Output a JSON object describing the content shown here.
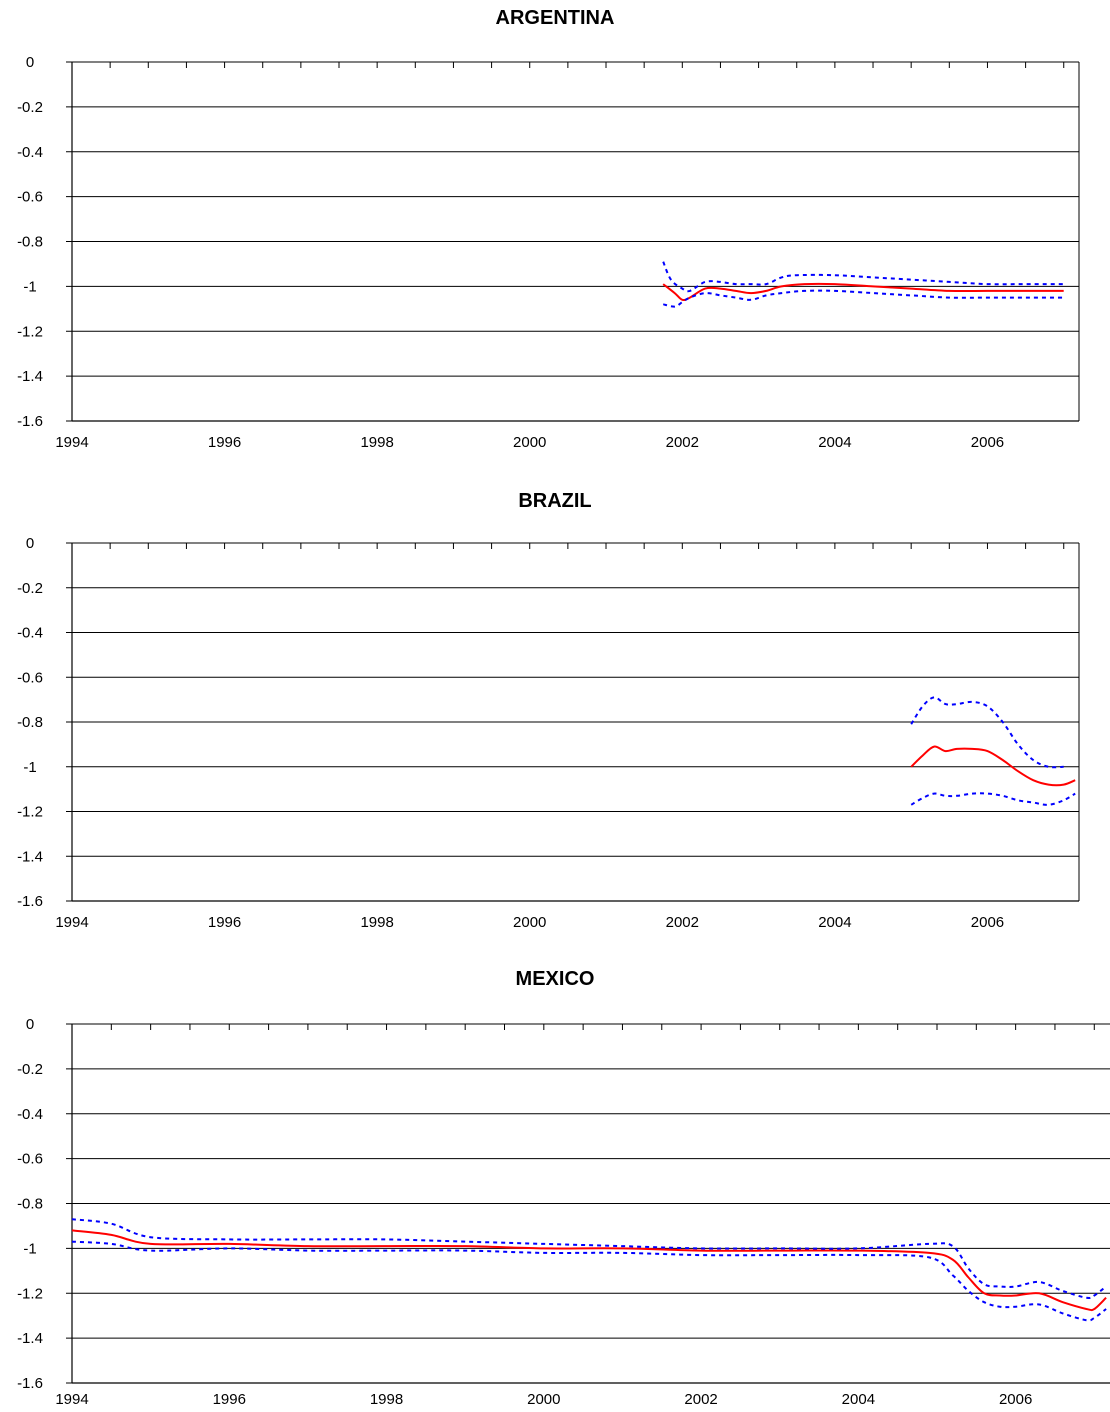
{
  "chart_data": [
    {
      "type": "line",
      "title": "ARGENTINA",
      "xlim": [
        1994,
        2007.2
      ],
      "ylim": [
        -1.6,
        0
      ],
      "x_ticks": [
        "1994",
        "1996",
        "1998",
        "2000",
        "2002",
        "2004",
        "2006"
      ],
      "y_ticks": [
        "0",
        "-0.2",
        "-0.4",
        "-0.6",
        "-0.8",
        "-1",
        "-1.2",
        "-1.4",
        "-1.6"
      ],
      "grid": true,
      "series": [
        {
          "style": "solid",
          "color": "#ff0000",
          "x": [
            2001.75,
            2001.9,
            2002.0,
            2002.1,
            2002.3,
            2002.5,
            2002.7,
            2002.9,
            2003.1,
            2003.3,
            2003.6,
            2004.0,
            2004.5,
            2005.0,
            2005.5,
            2006.0,
            2006.5,
            2007.0
          ],
          "y": [
            -0.99,
            -1.03,
            -1.06,
            -1.05,
            -1.01,
            -1.01,
            -1.02,
            -1.03,
            -1.02,
            -1.0,
            -0.99,
            -0.99,
            -1.0,
            -1.01,
            -1.02,
            -1.02,
            -1.02,
            -1.02
          ]
        },
        {
          "style": "dotted",
          "color": "#0000ff",
          "x": [
            2001.75,
            2001.85,
            2002.0,
            2002.1,
            2002.3,
            2002.5,
            2002.7,
            2002.9,
            2003.1,
            2003.3,
            2003.5,
            2004.0,
            2004.5,
            2005.0,
            2005.5,
            2006.0,
            2006.5,
            2007.0
          ],
          "y": [
            -0.89,
            -0.97,
            -1.01,
            -1.02,
            -0.98,
            -0.98,
            -0.99,
            -0.99,
            -0.99,
            -0.96,
            -0.95,
            -0.95,
            -0.96,
            -0.97,
            -0.98,
            -0.99,
            -0.99,
            -0.99
          ]
        },
        {
          "style": "dotted",
          "color": "#0000ff",
          "x": [
            2001.75,
            2001.9,
            2002.0,
            2002.1,
            2002.3,
            2002.5,
            2002.7,
            2002.9,
            2003.1,
            2003.3,
            2003.6,
            2004.0,
            2004.5,
            2005.0,
            2005.5,
            2006.0,
            2006.5,
            2007.0
          ],
          "y": [
            -1.08,
            -1.09,
            -1.07,
            -1.05,
            -1.03,
            -1.04,
            -1.05,
            -1.06,
            -1.04,
            -1.03,
            -1.02,
            -1.02,
            -1.03,
            -1.04,
            -1.05,
            -1.05,
            -1.05,
            -1.05
          ]
        }
      ]
    },
    {
      "type": "line",
      "title": "BRAZIL",
      "xlim": [
        1994,
        2007.2
      ],
      "ylim": [
        -1.6,
        0
      ],
      "x_ticks": [
        "1994",
        "1996",
        "1998",
        "2000",
        "2002",
        "2004",
        "2006"
      ],
      "y_ticks": [
        "0",
        "-0.2",
        "-0.4",
        "-0.6",
        "-0.8",
        "-1",
        "-1.2",
        "-1.4",
        "-1.6"
      ],
      "grid": true,
      "series": [
        {
          "style": "solid",
          "color": "#ff0000",
          "x": [
            2005.0,
            2005.15,
            2005.3,
            2005.45,
            2005.6,
            2005.8,
            2006.0,
            2006.2,
            2006.4,
            2006.6,
            2006.8,
            2007.0,
            2007.15
          ],
          "y": [
            -1.0,
            -0.95,
            -0.91,
            -0.93,
            -0.92,
            -0.92,
            -0.93,
            -0.97,
            -1.02,
            -1.06,
            -1.08,
            -1.08,
            -1.06
          ]
        },
        {
          "style": "dotted",
          "color": "#0000ff",
          "x": [
            2005.0,
            2005.15,
            2005.3,
            2005.45,
            2005.6,
            2005.8,
            2006.0,
            2006.2,
            2006.4,
            2006.6,
            2006.8,
            2007.0
          ],
          "y": [
            -0.81,
            -0.73,
            -0.69,
            -0.72,
            -0.72,
            -0.71,
            -0.73,
            -0.8,
            -0.9,
            -0.97,
            -1.0,
            -1.0
          ]
        },
        {
          "style": "dotted",
          "color": "#0000ff",
          "x": [
            2005.0,
            2005.15,
            2005.3,
            2005.45,
            2005.6,
            2005.8,
            2006.0,
            2006.2,
            2006.4,
            2006.6,
            2006.8,
            2007.0,
            2007.15
          ],
          "y": [
            -1.17,
            -1.14,
            -1.12,
            -1.13,
            -1.13,
            -1.12,
            -1.12,
            -1.13,
            -1.15,
            -1.16,
            -1.17,
            -1.15,
            -1.12
          ]
        }
      ]
    },
    {
      "type": "line",
      "title": "MEXICO",
      "xlim": [
        1994,
        2007.2
      ],
      "ylim": [
        -1.6,
        0
      ],
      "x_ticks": [
        "1994",
        "1996",
        "1998",
        "2000",
        "2002",
        "2004",
        "2006"
      ],
      "y_ticks": [
        "0",
        "-0.2",
        "-0.4",
        "-0.6",
        "-0.8",
        "-1",
        "-1.2",
        "-1.4",
        "-1.6"
      ],
      "grid": true,
      "series": [
        {
          "style": "solid",
          "color": "#ff0000",
          "x": [
            1994.0,
            1994.5,
            1995.0,
            1996.0,
            1997.0,
            1998.0,
            1999.0,
            2000.0,
            2001.0,
            2002.0,
            2003.0,
            2004.0,
            2004.9,
            2005.2,
            2005.4,
            2005.6,
            2005.8,
            2006.0,
            2006.3,
            2006.6,
            2006.9,
            2007.0,
            2007.15
          ],
          "y": [
            -0.92,
            -0.94,
            -0.98,
            -0.98,
            -0.99,
            -0.99,
            -0.99,
            -1.0,
            -1.0,
            -1.01,
            -1.01,
            -1.01,
            -1.02,
            -1.05,
            -1.13,
            -1.2,
            -1.21,
            -1.21,
            -1.2,
            -1.24,
            -1.27,
            -1.27,
            -1.22
          ]
        },
        {
          "style": "dotted",
          "color": "#0000ff",
          "x": [
            1994.0,
            1994.5,
            1995.0,
            1996.0,
            1997.0,
            1998.0,
            1999.0,
            2000.0,
            2001.0,
            2002.0,
            2003.0,
            2004.0,
            2004.9,
            2005.2,
            2005.4,
            2005.6,
            2005.8,
            2006.0,
            2006.3,
            2006.6,
            2006.9,
            2007.0,
            2007.15
          ],
          "y": [
            -0.87,
            -0.89,
            -0.95,
            -0.96,
            -0.96,
            -0.96,
            -0.97,
            -0.98,
            -0.99,
            -1.0,
            -1.0,
            -1.0,
            -0.98,
            -0.99,
            -1.09,
            -1.16,
            -1.17,
            -1.17,
            -1.15,
            -1.19,
            -1.22,
            -1.21,
            -1.17
          ]
        },
        {
          "style": "dotted",
          "color": "#0000ff",
          "x": [
            1994.0,
            1994.5,
            1995.0,
            1996.0,
            1997.0,
            1998.0,
            1999.0,
            2000.0,
            2001.0,
            2002.0,
            2003.0,
            2004.0,
            2004.9,
            2005.2,
            2005.4,
            2005.6,
            2005.8,
            2006.0,
            2006.3,
            2006.6,
            2006.9,
            2007.0,
            2007.15
          ],
          "y": [
            -0.97,
            -0.98,
            -1.01,
            -1.0,
            -1.01,
            -1.01,
            -1.01,
            -1.02,
            -1.02,
            -1.03,
            -1.03,
            -1.03,
            -1.04,
            -1.12,
            -1.19,
            -1.24,
            -1.26,
            -1.26,
            -1.25,
            -1.29,
            -1.32,
            -1.31,
            -1.27
          ]
        }
      ]
    }
  ]
}
